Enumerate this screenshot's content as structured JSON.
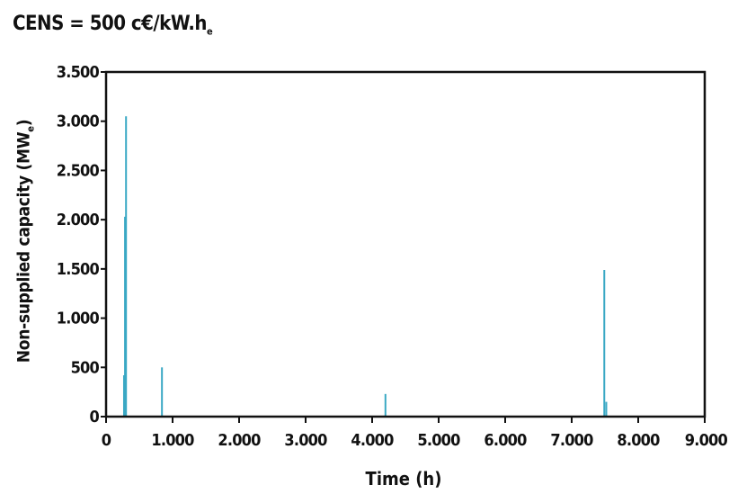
{
  "chart_data": {
    "type": "bar",
    "title": "CENS = 500 c€/kW.h",
    "title_subscript": "e",
    "xlabel": "Time (h)",
    "ylabel": "Non-supplied capacity (MW",
    "ylabel_subscript": "e",
    "ylabel_suffix": ")",
    "xlim": [
      0,
      9000
    ],
    "ylim": [
      0,
      3500
    ],
    "x_ticks": [
      0,
      1000,
      2000,
      3000,
      4000,
      5000,
      6000,
      7000,
      8000,
      9000
    ],
    "x_tick_labels": [
      "0",
      "1.000",
      "2.000",
      "3.000",
      "4.000",
      "5.000",
      "6.000",
      "7.000",
      "8.000",
      "9.000"
    ],
    "y_ticks": [
      0,
      500,
      1000,
      1500,
      2000,
      2500,
      3000,
      3500
    ],
    "y_tick_labels": [
      "0",
      "500",
      "1.000",
      "1.500",
      "2.000",
      "2.500",
      "3.000",
      "3.500"
    ],
    "grid": false,
    "series_color": "#3aa8c4",
    "points": [
      {
        "x": 270,
        "y": 420
      },
      {
        "x": 285,
        "y": 2030
      },
      {
        "x": 300,
        "y": 3050
      },
      {
        "x": 840,
        "y": 500
      },
      {
        "x": 4200,
        "y": 230
      },
      {
        "x": 7490,
        "y": 1490
      },
      {
        "x": 7520,
        "y": 150
      }
    ]
  }
}
